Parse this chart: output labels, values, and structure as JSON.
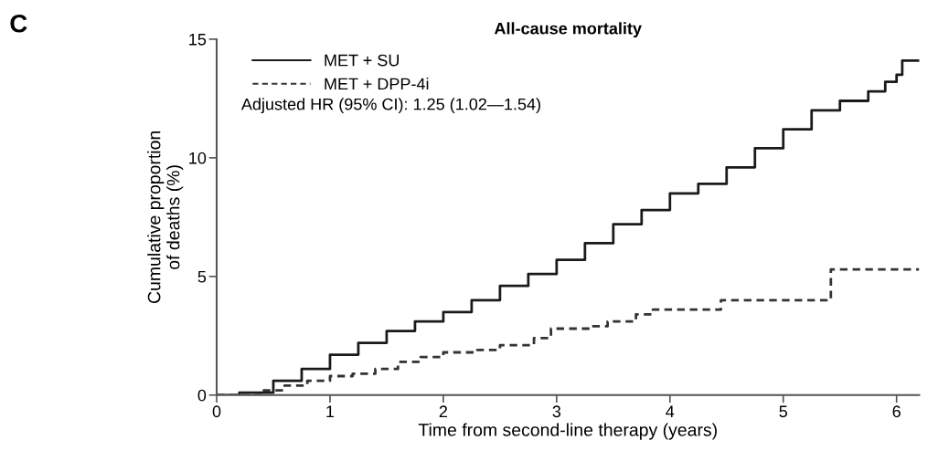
{
  "chart_data": {
    "type": "step",
    "title": "All-cause mortality",
    "xlabel": "Time from second-line therapy (years)",
    "ylabel": "Cumulative proportion\nof deaths (%)",
    "annotations": [
      "C",
      "Adjusted HR (95% CI): 1.25 (1.02—1.54)"
    ],
    "series": [
      {
        "name": "MET + SU",
        "color": "#1a1a1a",
        "line_style": "solid",
        "x": [
          0,
          0.2,
          0.5,
          0.75,
          1.0,
          1.25,
          1.5,
          1.75,
          2.0,
          2.25,
          2.5,
          2.75,
          3.0,
          3.25,
          3.5,
          3.75,
          4.0,
          4.25,
          4.5,
          4.75,
          5.0,
          5.25,
          5.5,
          5.75,
          5.9,
          6.0,
          6.05,
          6.2
        ],
        "values": [
          0,
          0.1,
          0.6,
          1.1,
          1.7,
          2.2,
          2.7,
          3.1,
          3.5,
          4.0,
          4.6,
          5.1,
          5.7,
          6.4,
          7.2,
          7.8,
          8.5,
          8.9,
          9.6,
          10.4,
          11.2,
          12.0,
          12.4,
          12.8,
          13.2,
          13.5,
          14.1,
          14.1
        ]
      },
      {
        "name": "MET + DPP-4i",
        "color": "#333333",
        "line_style": "dashed",
        "x": [
          0,
          0.25,
          0.4,
          0.6,
          0.8,
          1.0,
          1.2,
          1.4,
          1.6,
          1.8,
          2.0,
          2.3,
          2.5,
          2.8,
          2.95,
          3.3,
          3.45,
          3.7,
          3.85,
          4.45,
          5.42,
          6.2
        ],
        "values": [
          0,
          0,
          0.2,
          0.4,
          0.6,
          0.8,
          0.9,
          1.1,
          1.4,
          1.6,
          1.8,
          1.9,
          2.1,
          2.4,
          2.8,
          2.9,
          3.1,
          3.4,
          3.6,
          4.0,
          5.3,
          5.3
        ]
      }
    ],
    "xlim": [
      0,
      6.2
    ],
    "ylim": [
      0,
      15
    ],
    "xticks": [
      0,
      1,
      2,
      3,
      4,
      5,
      6
    ],
    "yticks": [
      0,
      5,
      10,
      15
    ],
    "grid": false,
    "legend": "top left"
  }
}
